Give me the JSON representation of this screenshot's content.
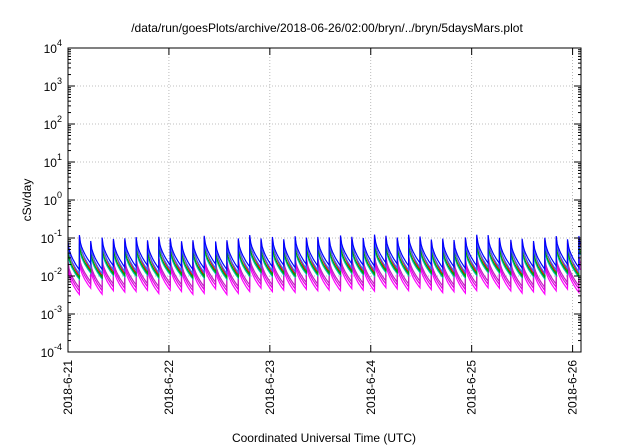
{
  "chart_data": {
    "type": "line",
    "title": "/data/run/goesPlots/archive/2018-06-26/02:00/bryn/../bryn/5daysMars.plot",
    "xlabel": "Coordinated Universal Time (UTC)",
    "ylabel": "cSv/day",
    "yscale": "log",
    "ylim": [
      0.0001,
      10000
    ],
    "y_ticks": [
      {
        "base": "10",
        "exp": "4"
      },
      {
        "base": "10",
        "exp": "3"
      },
      {
        "base": "10",
        "exp": "2"
      },
      {
        "base": "10",
        "exp": "1"
      },
      {
        "base": "10",
        "exp": "0"
      },
      {
        "base": "10",
        "exp": "-1"
      },
      {
        "base": "10",
        "exp": "-2"
      },
      {
        "base": "10",
        "exp": "-3"
      },
      {
        "base": "10",
        "exp": "-4"
      }
    ],
    "xlim_days": [
      "2018-6-21",
      "2018-6-26 02:00"
    ],
    "x_ticks": [
      "2018-6-21",
      "2018-6-22",
      "2018-6-23",
      "2018-6-24",
      "2018-6-25",
      "2018-6-26"
    ],
    "grid": true,
    "sawtooth_period_hours": 2.7,
    "series": [
      {
        "color": "#ff00ff",
        "peak": 0.02,
        "base": 0.004
      },
      {
        "color": "#e000e0",
        "peak": 0.025,
        "base": 0.005
      },
      {
        "color": "#c020c0",
        "peak": 0.03,
        "base": 0.006
      },
      {
        "color": "#ff0000",
        "peak": 0.09,
        "base": 0.012
      },
      {
        "color": "#00c0c0",
        "peak": 0.05,
        "base": 0.01
      },
      {
        "color": "#00a000",
        "peak": 0.06,
        "base": 0.011
      },
      {
        "color": "#4060ff",
        "peak": 0.08,
        "base": 0.014
      },
      {
        "color": "#0000ff",
        "peak": 0.1,
        "base": 0.018
      }
    ]
  }
}
